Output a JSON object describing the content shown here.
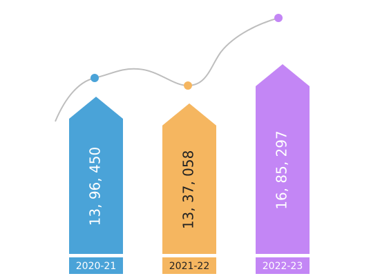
{
  "chart_data": {
    "type": "arrow-bar",
    "categories": [
      "2020-21",
      "2021-22",
      "2022-23"
    ],
    "values": [
      1396450,
      1337058,
      1685297
    ],
    "value_labels": [
      "13, 96, 450",
      "13, 37, 058",
      "16, 85, 297"
    ],
    "colors": [
      "#4aa3d8",
      "#f5b660",
      "#c386f5"
    ],
    "label_colors": [
      "#ffffff",
      "#222222",
      "#ffffff"
    ]
  }
}
